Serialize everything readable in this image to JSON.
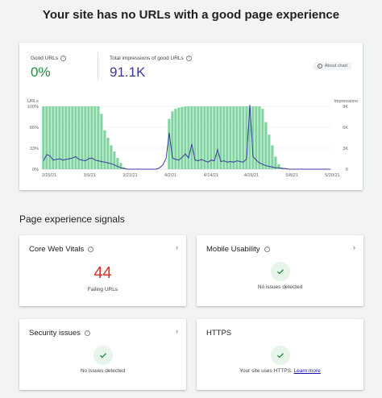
{
  "headline": "Your site has no URLs with a good page experience",
  "metrics": {
    "good_label": "Good URLs",
    "good_value": "0%",
    "impr_label": "Total impressions of good URLs",
    "impr_value": "91.1K",
    "about_chart": "About chart"
  },
  "colors": {
    "bars": "#81d3a0",
    "impressions_line": "#3c3aa0",
    "good_value": "#1e8e3e",
    "failing_value": "#d93025",
    "check_bg": "#e6f4ea",
    "check_mark": "#1e8e3e"
  },
  "chart_data": {
    "type": "bar",
    "left_axis_label": "URLs",
    "right_axis_label": "Impressions",
    "left_ticks": [
      "100%",
      "66%",
      "33%",
      "0%"
    ],
    "right_ticks": [
      "9K",
      "6K",
      "3K",
      "0"
    ],
    "x_ticks": [
      "2/25/21",
      "3/9/21",
      "3/21/21",
      "4/2/21",
      "4/14/21",
      "4/26/21",
      "5/8/21",
      "5/20/21"
    ],
    "ylim_left": [
      0,
      100
    ],
    "ylim_right": [
      0,
      9000
    ],
    "series": [
      {
        "values": [
          100,
          100,
          100,
          100,
          100,
          100,
          100,
          100,
          100,
          100,
          100,
          100,
          100,
          100,
          100,
          100,
          100,
          100,
          88,
          62,
          50,
          38,
          28,
          18,
          10,
          3,
          0,
          0,
          0,
          0,
          0,
          0,
          0,
          0,
          0,
          0,
          0,
          0,
          0,
          80,
          92,
          96,
          98,
          99,
          100,
          100,
          100,
          100,
          100,
          100,
          100,
          100,
          100,
          100,
          100,
          100,
          100,
          100,
          100,
          100,
          100,
          100,
          100,
          100,
          100,
          100,
          100,
          100,
          96,
          75,
          55,
          38,
          20,
          8,
          3,
          1,
          0,
          0,
          0,
          0,
          0,
          0,
          0,
          0,
          0,
          0,
          0,
          0,
          0,
          0
        ]
      },
      {
        "values": [
          1200,
          2100,
          1900,
          1300,
          1400,
          1500,
          1300,
          1400,
          1500,
          1600,
          1800,
          1400,
          1300,
          1200,
          1500,
          1600,
          1300,
          1200,
          1100,
          1000,
          900,
          800,
          600,
          400,
          200,
          100,
          0,
          0,
          0,
          0,
          0,
          0,
          0,
          0,
          0,
          0,
          200,
          600,
          1500,
          5200,
          1600,
          1400,
          1300,
          1700,
          2200,
          1600,
          3600,
          1300,
          1200,
          1400,
          1200,
          1000,
          1300,
          1200,
          2800,
          1100,
          1200,
          1000,
          1100,
          1000,
          1200,
          1100,
          1000,
          1500,
          9200,
          1800,
          1300,
          900,
          700,
          500,
          400,
          300,
          200,
          200,
          100,
          100,
          0,
          0,
          0,
          0,
          0,
          0,
          0,
          0,
          0,
          0,
          0,
          0,
          0,
          0
        ]
      }
    ]
  },
  "section_title": "Page experience signals",
  "signals": {
    "cwv_title": "Core Web Vitals",
    "cwv_value": "44",
    "cwv_sub": "Failing URLs",
    "mobile_title": "Mobile Usability",
    "mobile_sub": "No issues detected",
    "security_title": "Security issues",
    "security_sub": "No issues detected",
    "https_title": "HTTPS",
    "https_sub": "Your site uses HTTPS.",
    "https_link": "Learn more"
  }
}
